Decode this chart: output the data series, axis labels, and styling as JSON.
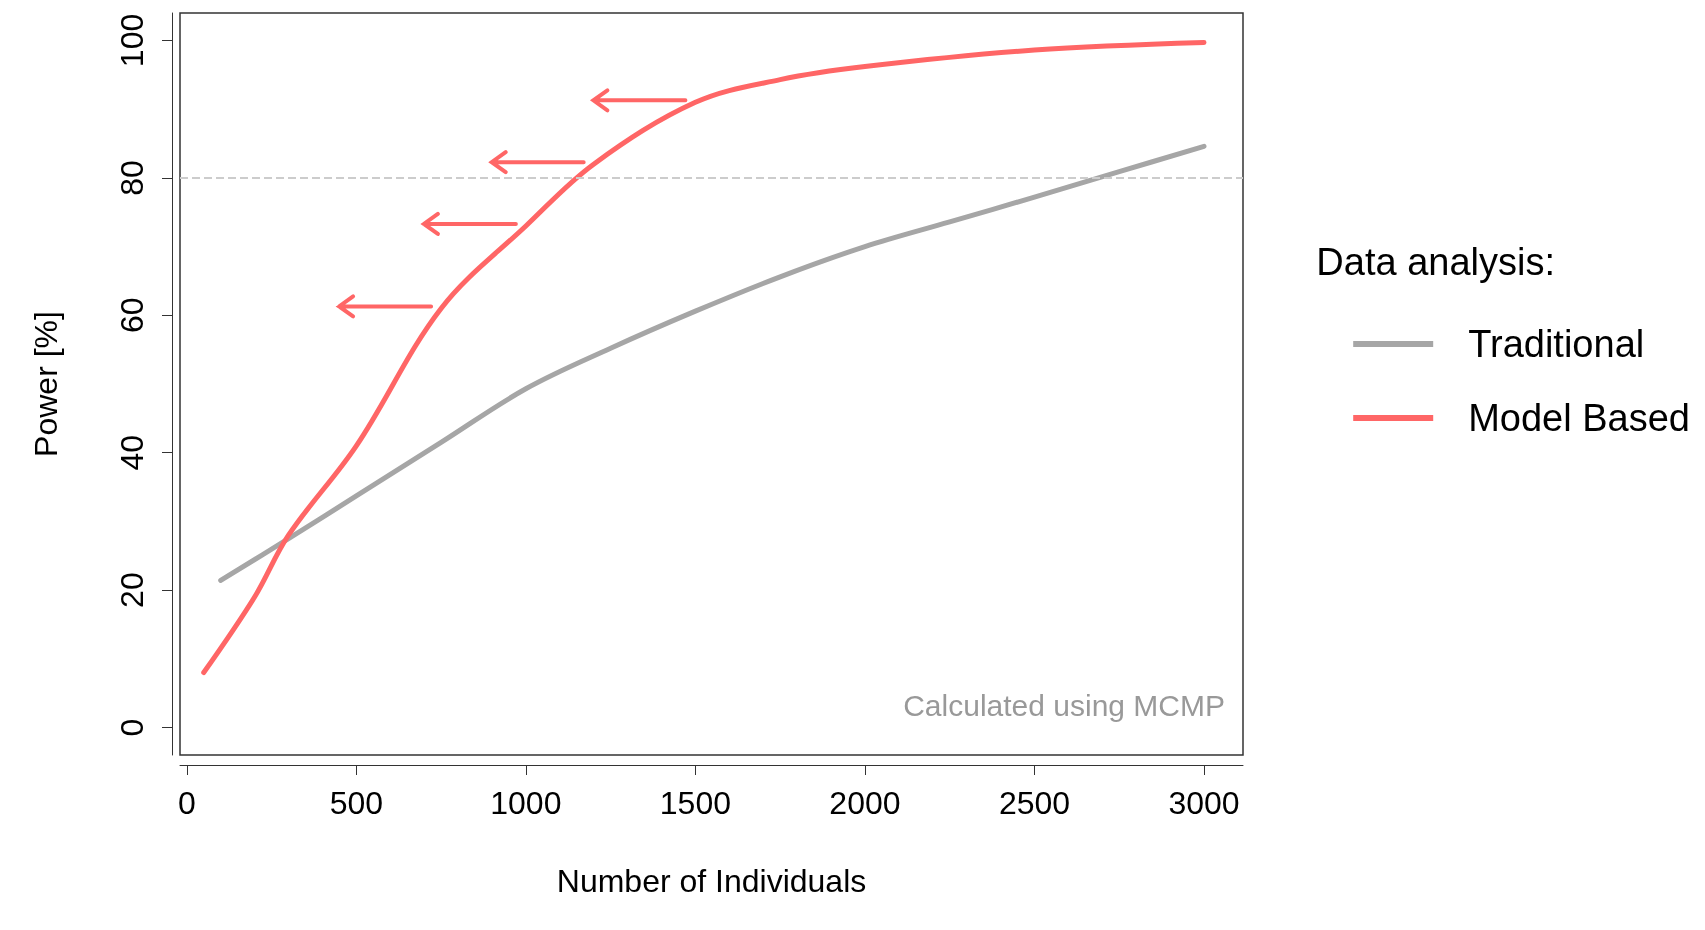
{
  "chart_data": {
    "type": "line",
    "xlabel": "Number of Individuals",
    "ylabel": "Power [%]",
    "legend_title": "Data analysis:",
    "series": [
      {
        "name": "Traditional",
        "color": "#a6a6a6",
        "x": [
          100,
          300,
          500,
          750,
          1000,
          1250,
          1500,
          1750,
          2000,
          2250,
          2500,
          2750,
          3000
        ],
        "values": [
          21.4,
          27.5,
          33.7,
          41.5,
          49.3,
          55.2,
          60.6,
          65.6,
          70,
          73.6,
          77.2,
          80.9,
          84.6
        ]
      },
      {
        "name": "Model Based",
        "color": "#ff6666",
        "x": [
          50,
          200,
          300,
          500,
          750,
          1000,
          1200,
          1500,
          1750,
          2000,
          2500,
          3000
        ],
        "values": [
          8,
          19,
          28,
          41,
          61,
          73,
          82,
          91,
          94.3,
          96.2,
          98.6,
          99.7
        ]
      }
    ],
    "xlim": [
      -20,
      3115
    ],
    "xticks": [
      0,
      500,
      1000,
      1500,
      2000,
      2500,
      3000
    ],
    "ylim": [
      -4,
      104
    ],
    "yticks": [
      0,
      20,
      40,
      60,
      80,
      100
    ],
    "ref_lines": [
      {
        "axis": "y",
        "value": 80,
        "color": "#cccccc",
        "line_style": "dashed"
      }
    ],
    "annotations": [
      "Calculated using MCMP"
    ],
    "legend": "right",
    "grid": false,
    "marker": "none",
    "line_style": "solid"
  }
}
